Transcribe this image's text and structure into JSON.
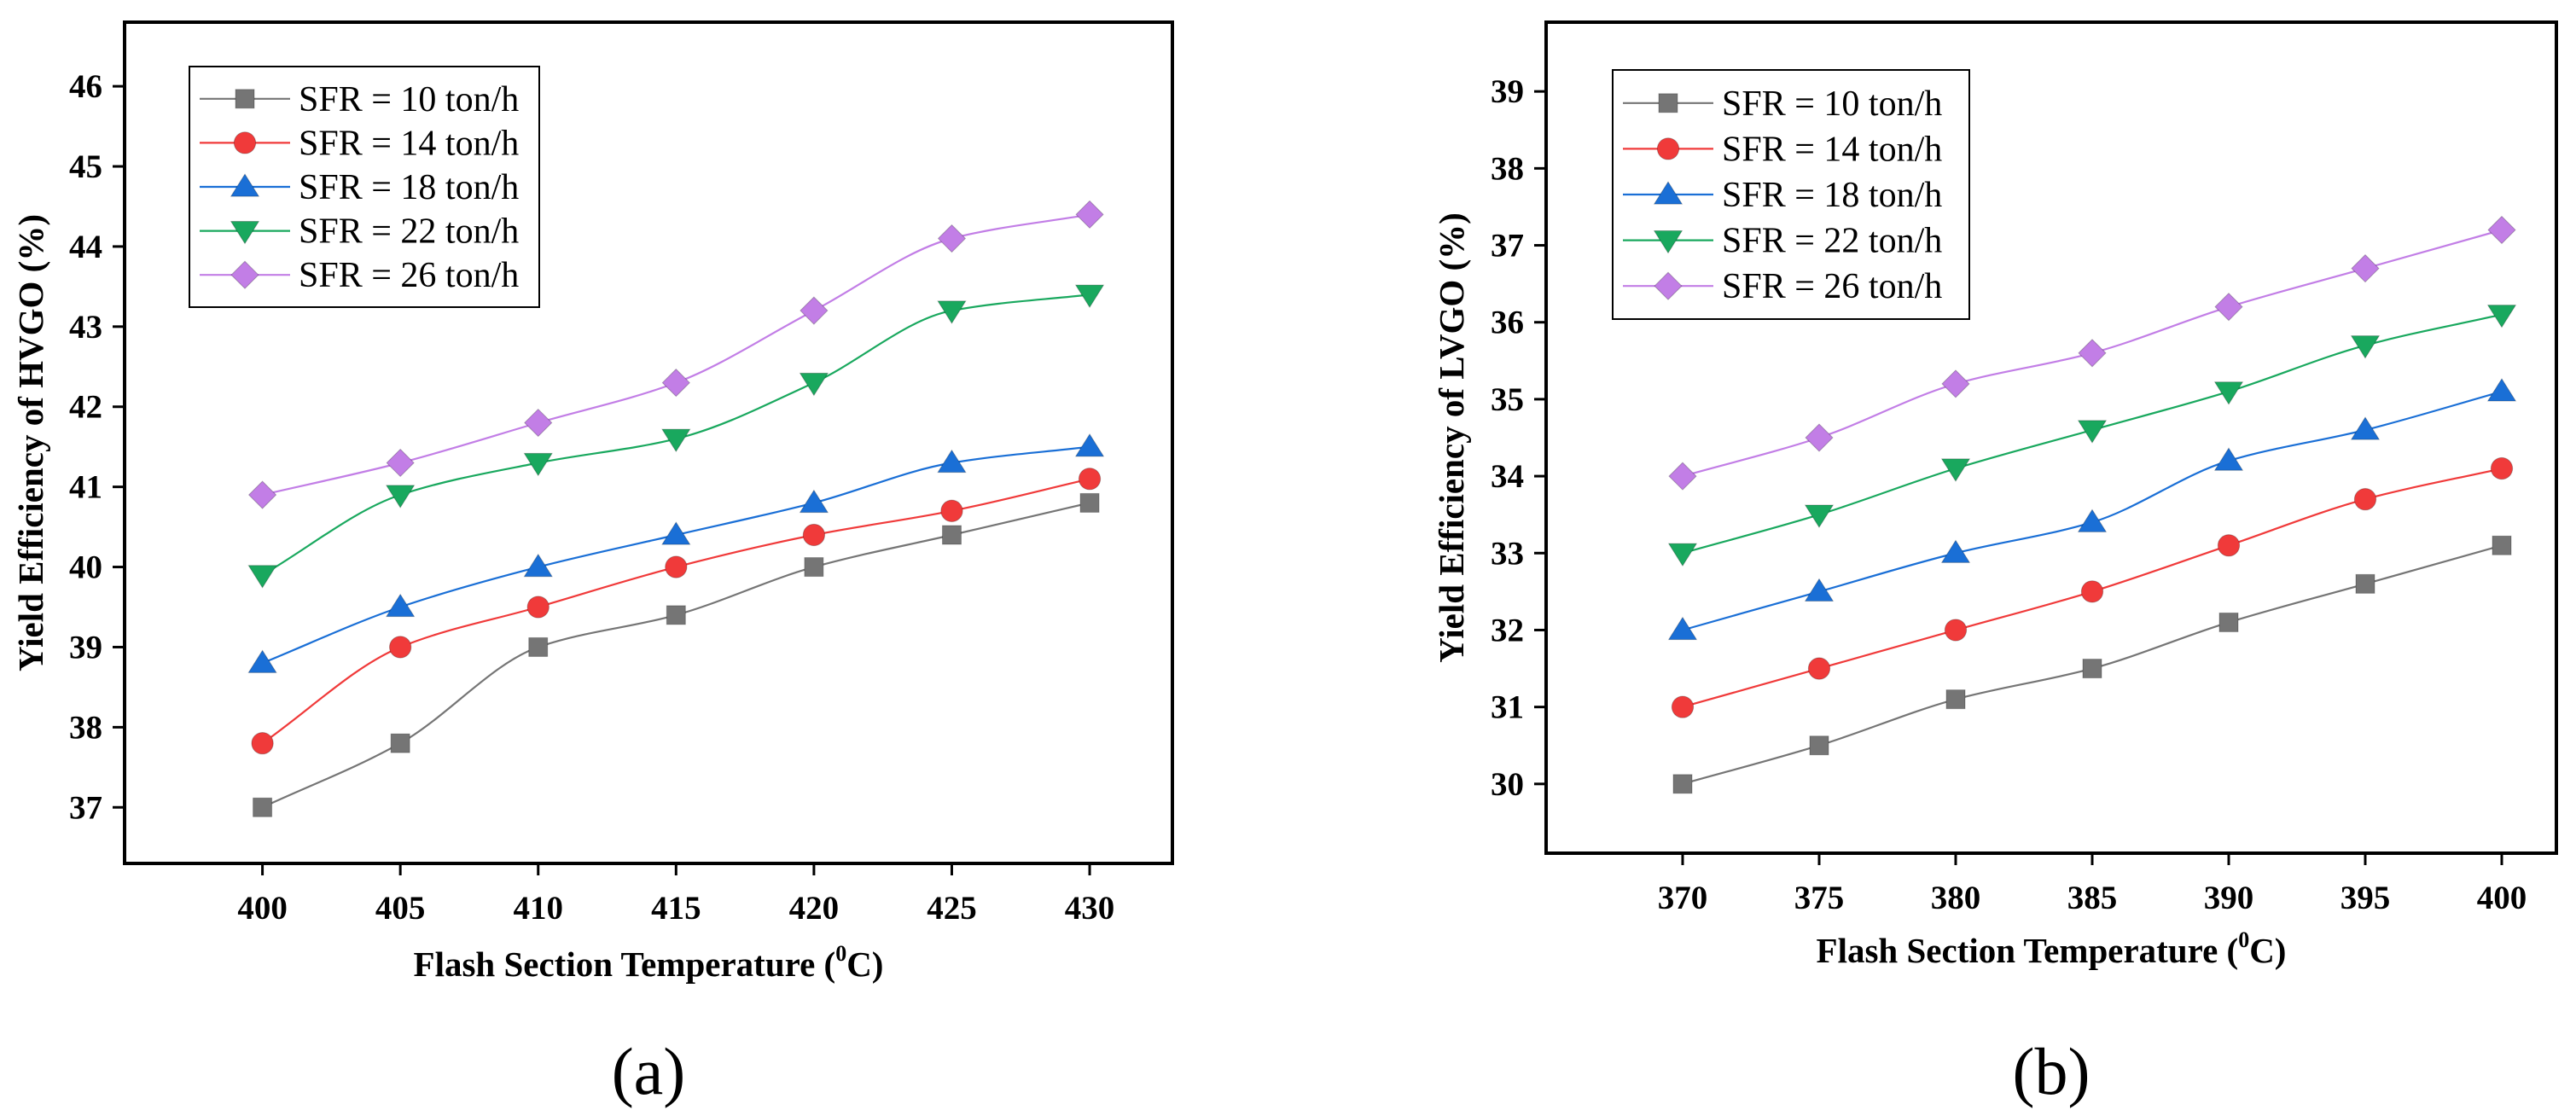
{
  "chart_data": [
    {
      "type": "line",
      "panel_label": "(a)",
      "xlabel": "Flash Section Temperature (",
      "xlabel_sup": "0",
      "xlabel_tail": "C)",
      "ylabel": "Yield Efficiency of HVGO (%)",
      "xlim": [
        395,
        433
      ],
      "ylim": [
        36.3,
        46.8
      ],
      "xticks": [
        400,
        405,
        410,
        415,
        420,
        425,
        430
      ],
      "yticks": [
        37,
        38,
        39,
        40,
        41,
        42,
        43,
        44,
        45,
        46
      ],
      "x": [
        400,
        405,
        410,
        415,
        420,
        425,
        430
      ],
      "legend_position": "top-left",
      "series": [
        {
          "name": "SFR = 10 ton/h",
          "marker": "square",
          "color": "#757575",
          "values": [
            37.0,
            37.8,
            39.0,
            39.4,
            40.0,
            40.4,
            40.8
          ]
        },
        {
          "name": "SFR = 14 ton/h",
          "marker": "circle",
          "color": "#f03a3a",
          "values": [
            37.8,
            39.0,
            39.5,
            40.0,
            40.4,
            40.7,
            41.1
          ]
        },
        {
          "name": "SFR = 18 ton/h",
          "marker": "triangle-up",
          "color": "#1a6fd6",
          "values": [
            38.8,
            39.5,
            40.0,
            40.4,
            40.8,
            41.3,
            41.5
          ]
        },
        {
          "name": "SFR = 22 ton/h",
          "marker": "triangle-down",
          "color": "#19a85e",
          "values": [
            39.9,
            40.9,
            41.3,
            41.6,
            42.3,
            43.2,
            43.4
          ]
        },
        {
          "name": "SFR = 26 ton/h",
          "marker": "diamond",
          "color": "#c27ee6",
          "values": [
            40.9,
            41.3,
            41.8,
            42.3,
            43.2,
            44.1,
            44.4
          ]
        }
      ]
    },
    {
      "type": "line",
      "panel_label": "(b)",
      "xlabel": "Flash Section Temperature (",
      "xlabel_sup": "0",
      "xlabel_tail": "C)",
      "ylabel": "Yield Efficiency of LVGO (%)",
      "xlim": [
        365,
        402
      ],
      "ylim": [
        29.1,
        39.9
      ],
      "xticks": [
        370,
        375,
        380,
        385,
        390,
        395,
        400
      ],
      "yticks": [
        30,
        31,
        32,
        33,
        34,
        35,
        36,
        37,
        38,
        39
      ],
      "x": [
        370,
        375,
        380,
        385,
        390,
        395,
        400
      ],
      "legend_position": "top-left",
      "series": [
        {
          "name": "SFR = 10 ton/h",
          "marker": "square",
          "color": "#757575",
          "values": [
            30.0,
            30.5,
            31.1,
            31.5,
            32.1,
            32.6,
            33.1
          ]
        },
        {
          "name": "SFR = 14 ton/h",
          "marker": "circle",
          "color": "#f03a3a",
          "values": [
            31.0,
            31.5,
            32.0,
            32.5,
            33.1,
            33.7,
            34.1
          ]
        },
        {
          "name": "SFR = 18 ton/h",
          "marker": "triangle-up",
          "color": "#1a6fd6",
          "values": [
            32.0,
            32.5,
            33.0,
            33.4,
            34.2,
            34.6,
            35.1
          ]
        },
        {
          "name": "SFR = 22 ton/h",
          "marker": "triangle-down",
          "color": "#19a85e",
          "values": [
            33.0,
            33.5,
            34.1,
            34.6,
            35.1,
            35.7,
            36.1
          ]
        },
        {
          "name": "SFR = 26 ton/h",
          "marker": "diamond",
          "color": "#c27ee6",
          "values": [
            34.0,
            34.5,
            35.2,
            35.6,
            36.2,
            36.7,
            37.2
          ]
        }
      ]
    }
  ]
}
